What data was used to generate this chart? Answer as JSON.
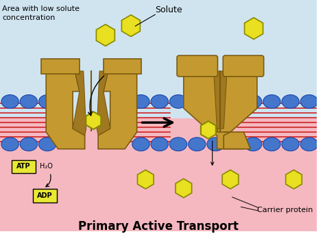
{
  "title": "Primary Active Transport",
  "title_fontsize": 12,
  "title_fontweight": "bold",
  "label_solute": "Solute",
  "label_area": "Area with low solute\nconcentration",
  "label_carrier": "Carrier protein",
  "label_atp": "ATP",
  "label_adp": "ADP",
  "label_h2o": "H₂O",
  "bg_top_color": "#d0e4f0",
  "bg_bottom_color": "#f5b8c0",
  "membrane_red_color": "#cc2222",
  "phospholipid_head_color": "#4477cc",
  "protein_color": "#c49a30",
  "protein_dark_color": "#7a5a10",
  "solute_color": "#e8e020",
  "solute_edge_color": "#888800",
  "arrow_color": "black",
  "atp_box_color": "#e8e835",
  "adp_box_color": "#e8e835",
  "fig_width": 4.74,
  "fig_height": 3.42,
  "dpi": 100
}
